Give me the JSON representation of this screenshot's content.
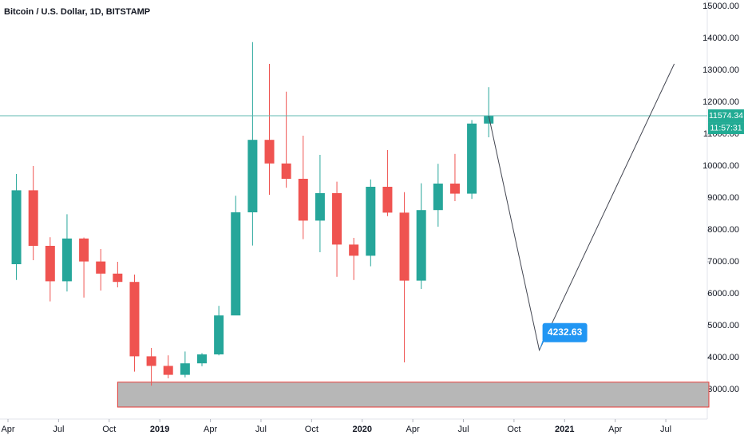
{
  "chart_data": {
    "type": "candlestick",
    "title": "Bitcoin / U.S. Dollar, 1D, BITSTAMP",
    "x": [
      "2018-04",
      "2018-05",
      "2018-06",
      "2018-07",
      "2018-08",
      "2018-09",
      "2018-10",
      "2018-11",
      "2018-12",
      "2019-01",
      "2019-02",
      "2019-03",
      "2019-04",
      "2019-05",
      "2019-06",
      "2019-07",
      "2019-08",
      "2019-09",
      "2019-10",
      "2019-11",
      "2019-12",
      "2020-01",
      "2020-02",
      "2020-03",
      "2020-04",
      "2020-05",
      "2020-06",
      "2020-07",
      "2020-08"
    ],
    "open": [
      6925,
      9240,
      7500,
      6390,
      7730,
      7010,
      6630,
      6370,
      4040,
      3740,
      3460,
      3820,
      4100,
      5320,
      8550,
      10820,
      10080,
      9600,
      8290,
      9150,
      7540,
      7190,
      9350,
      8540,
      6410,
      8620,
      9450,
      9135,
      11330
    ],
    "high": [
      9750,
      10000,
      7770,
      8490,
      7760,
      7400,
      7000,
      6600,
      4300,
      4070,
      4190,
      4140,
      5620,
      9070,
      13880,
      13200,
      12330,
      10950,
      10350,
      9510,
      7750,
      9580,
      10500,
      9180,
      9460,
      10070,
      10380,
      11440,
      12470
    ],
    "low": [
      6430,
      7050,
      5760,
      6070,
      5880,
      6100,
      6200,
      3560,
      3120,
      3350,
      3380,
      3730,
      4070,
      5330,
      7510,
      9100,
      9320,
      7710,
      7300,
      6530,
      6430,
      6860,
      8430,
      3850,
      6150,
      8100,
      8900,
      8970,
      10900
    ],
    "close": [
      9240,
      7500,
      6390,
      7730,
      7010,
      6630,
      6370,
      4040,
      3740,
      3460,
      3820,
      4100,
      5320,
      8550,
      10820,
      10080,
      9600,
      8290,
      9150,
      7540,
      7190,
      9350,
      8540,
      6410,
      8620,
      9450,
      9135,
      11330,
      11574.34
    ],
    "up_color": "#26a69a",
    "down_color": "#ef5350",
    "ylim": [
      2075,
      15200
    ],
    "yticks": [
      {
        "value": 3000,
        "label": "3000.00"
      },
      {
        "value": 4000,
        "label": "4000.00"
      },
      {
        "value": 5000,
        "label": "5000.00"
      },
      {
        "value": 6000,
        "label": "6000.00"
      },
      {
        "value": 7000,
        "label": "7000.00"
      },
      {
        "value": 8000,
        "label": "8000.00"
      },
      {
        "value": 9000,
        "label": "9000.00"
      },
      {
        "value": 10000,
        "label": "10000.00"
      },
      {
        "value": 11000,
        "label": "11000.00"
      },
      {
        "value": 12000,
        "label": "12000.00"
      },
      {
        "value": 13000,
        "label": "13000.00"
      },
      {
        "value": 14000,
        "label": "14000.00"
      },
      {
        "value": 15000,
        "label": "15000.00"
      }
    ],
    "xticks": [
      {
        "value": "2018-04",
        "label": "Apr"
      },
      {
        "value": "2018-07",
        "label": "Jul"
      },
      {
        "value": "2018-10",
        "label": "Oct"
      },
      {
        "value": "2019-01",
        "label": "2019"
      },
      {
        "value": "2019-04",
        "label": "Apr"
      },
      {
        "value": "2019-07",
        "label": "Jul"
      },
      {
        "value": "2019-10",
        "label": "Oct"
      },
      {
        "value": "2020-01",
        "label": "2020"
      },
      {
        "value": "2020-04",
        "label": "Apr"
      },
      {
        "value": "2020-07",
        "label": "Jul"
      },
      {
        "value": "2020-10",
        "label": "Oct"
      },
      {
        "value": "2021-01",
        "label": "2021"
      },
      {
        "value": "2021-04",
        "label": "Apr"
      },
      {
        "value": "2021-07",
        "label": "Jul"
      }
    ],
    "countdown": "11:57:31",
    "zone": {
      "from": "2018-10",
      "low": 2450,
      "high": 3230
    },
    "projection": [
      {
        "x": "2020-08",
        "y": 11574.34
      },
      {
        "x": "2020-11",
        "y": 4232.63
      },
      {
        "x": "2021-07",
        "y": 13200
      }
    ],
    "grid": false
  }
}
